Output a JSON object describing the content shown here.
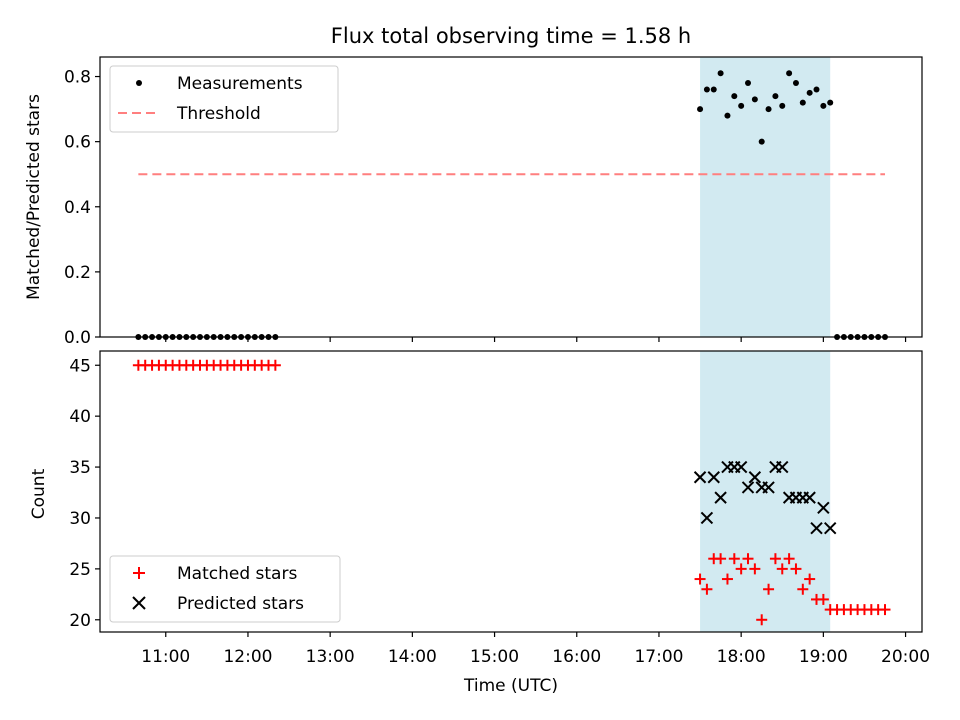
{
  "chart_data": [
    {
      "type": "scatter",
      "title": "Flux total observing time = 1.58 h",
      "ylabel": "Matched/Predicted stars",
      "xlabel": "",
      "ylim": [
        0,
        0.86
      ],
      "yticks": [
        "0.0",
        "0.2",
        "0.4",
        "0.6",
        "0.8"
      ],
      "ytick_values": [
        0,
        0.2,
        0.4,
        0.6,
        0.8
      ],
      "legend_position": "top-left",
      "legend": [
        "Measurements",
        "Threshold"
      ],
      "shaded_interval": {
        "start": "17:30",
        "end": "19:05",
        "color": "#add8e6"
      },
      "threshold": {
        "value": 0.5,
        "x_start": "10:40",
        "x_end": "19:45",
        "color": "#ff7f7f"
      },
      "series": [
        {
          "name": "Measurements",
          "marker": "dot",
          "color": "#000000",
          "x": [
            "10:40",
            "10:45",
            "10:50",
            "10:55",
            "11:00",
            "11:05",
            "11:10",
            "11:15",
            "11:20",
            "11:25",
            "11:30",
            "11:35",
            "11:40",
            "11:45",
            "11:50",
            "11:55",
            "12:00",
            "12:05",
            "12:10",
            "12:15",
            "12:20",
            "17:30",
            "17:35",
            "17:40",
            "17:45",
            "17:50",
            "17:55",
            "18:00",
            "18:05",
            "18:10",
            "18:15",
            "18:20",
            "18:25",
            "18:30",
            "18:35",
            "18:40",
            "18:45",
            "18:50",
            "18:55",
            "19:00",
            "19:05",
            "19:10",
            "19:15",
            "19:20",
            "19:25",
            "19:30",
            "19:35",
            "19:40",
            "19:45"
          ],
          "y": [
            0,
            0,
            0,
            0,
            0,
            0,
            0,
            0,
            0,
            0,
            0,
            0,
            0,
            0,
            0,
            0,
            0,
            0,
            0,
            0,
            0,
            0.7,
            0.76,
            0.76,
            0.81,
            0.68,
            0.74,
            0.71,
            0.78,
            0.73,
            0.6,
            0.7,
            0.74,
            0.71,
            0.81,
            0.78,
            0.72,
            0.75,
            0.76,
            0.71,
            0.72,
            0,
            0,
            0,
            0,
            0,
            0,
            0,
            0
          ]
        }
      ]
    },
    {
      "type": "scatter",
      "title": "",
      "xlabel": "Time (UTC)",
      "ylabel": "Count",
      "ylim": [
        18.8,
        46.4
      ],
      "yticks": [
        "20",
        "25",
        "30",
        "35",
        "40",
        "45"
      ],
      "ytick_values": [
        20,
        25,
        30,
        35,
        40,
        45
      ],
      "xlim": [
        "10:12",
        "20:12"
      ],
      "xticks": [
        "11:00",
        "12:00",
        "13:00",
        "14:00",
        "15:00",
        "16:00",
        "17:00",
        "18:00",
        "19:00",
        "20:00"
      ],
      "legend_position": "bottom-left",
      "legend": [
        "Matched stars",
        "Predicted stars"
      ],
      "shaded_interval": {
        "start": "17:30",
        "end": "19:05",
        "color": "#add8e6"
      },
      "series": [
        {
          "name": "Matched stars",
          "marker": "plus",
          "color": "#ff0000",
          "x": [
            "10:40",
            "10:45",
            "10:50",
            "10:55",
            "11:00",
            "11:05",
            "11:10",
            "11:15",
            "11:20",
            "11:25",
            "11:30",
            "11:35",
            "11:40",
            "11:45",
            "11:50",
            "11:55",
            "12:00",
            "12:05",
            "12:10",
            "12:15",
            "12:20",
            "17:30",
            "17:35",
            "17:40",
            "17:45",
            "17:50",
            "17:55",
            "18:00",
            "18:05",
            "18:10",
            "18:15",
            "18:20",
            "18:25",
            "18:30",
            "18:35",
            "18:40",
            "18:45",
            "18:50",
            "18:55",
            "19:00",
            "19:05",
            "19:10",
            "19:15",
            "19:20",
            "19:25",
            "19:30",
            "19:35",
            "19:40",
            "19:45"
          ],
          "y": [
            45,
            45,
            45,
            45,
            45,
            45,
            45,
            45,
            45,
            45,
            45,
            45,
            45,
            45,
            45,
            45,
            45,
            45,
            45,
            45,
            45,
            24,
            23,
            26,
            26,
            24,
            26,
            25,
            26,
            25,
            20,
            23,
            26,
            25,
            26,
            25,
            23,
            24,
            22,
            22,
            21,
            21,
            21,
            21,
            21,
            21,
            21,
            21,
            21
          ]
        },
        {
          "name": "Predicted stars",
          "marker": "x",
          "color": "#000000",
          "x": [
            "17:30",
            "17:35",
            "17:40",
            "17:45",
            "17:50",
            "17:55",
            "18:00",
            "18:05",
            "18:10",
            "18:15",
            "18:20",
            "18:25",
            "18:30",
            "18:35",
            "18:40",
            "18:45",
            "18:50",
            "18:55",
            "19:00",
            "19:05"
          ],
          "y": [
            34,
            30,
            34,
            32,
            35,
            35,
            35,
            33,
            34,
            33,
            33,
            35,
            35,
            32,
            32,
            32,
            32,
            29,
            31,
            29
          ]
        }
      ]
    }
  ]
}
